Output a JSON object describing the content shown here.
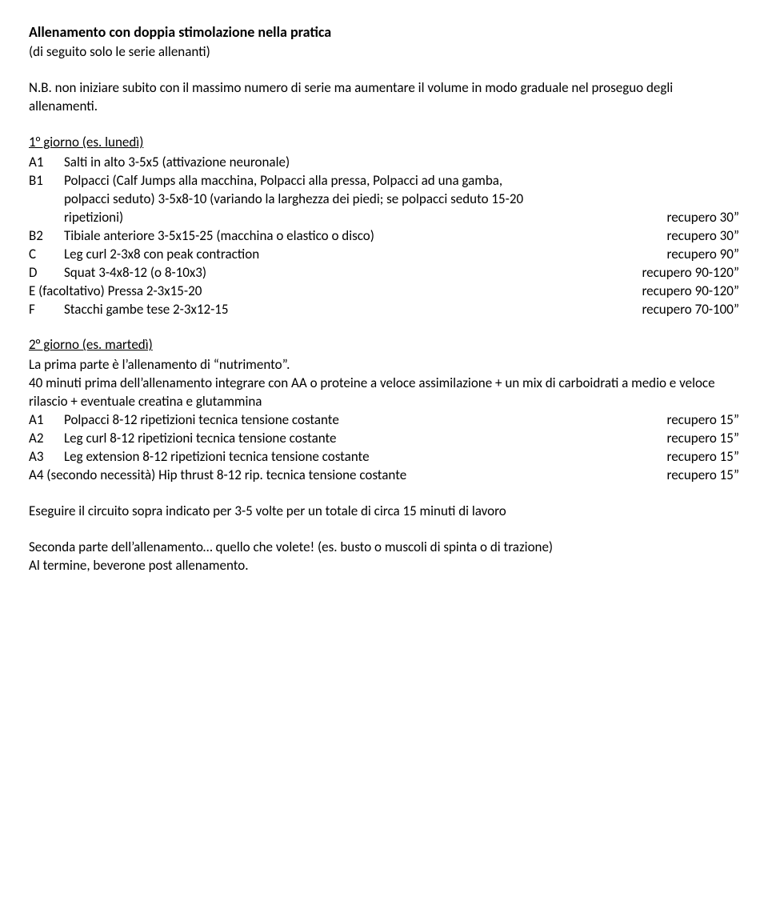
{
  "title": "Allenamento con doppia stimolazione nella pratica",
  "subtitle": "(di seguito solo le serie allenanti)",
  "nb": "N.B. non iniziare subito con il massimo numero di serie ma aumentare il volume in modo graduale nel proseguo degli allenamenti.",
  "day1": {
    "header": "1° giorno (es. lunedì)",
    "a1": {
      "code": "A1",
      "desc": "Salti in alto 3-5x5 (attivazione neuronale)"
    },
    "b1": {
      "code": "B1",
      "desc1": "Polpacci (Calf Jumps alla macchina, Polpacci alla pressa, Polpacci ad una gamba,",
      "desc2": "polpacci seduto) 3-5x8-10 (variando la larghezza dei piedi; se polpacci seduto 15-20",
      "desc3": "ripetizioni)",
      "rec": "recupero 30”"
    },
    "b2": {
      "code": "B2",
      "desc": "Tibiale anteriore 3-5x15-25 (macchina o elastico o disco)",
      "rec": "recupero 30”"
    },
    "c": {
      "code": "C",
      "desc": "Leg curl 2-3x8 con peak contraction",
      "rec": "recupero 90”"
    },
    "d": {
      "code": "D",
      "desc": "Squat 3-4x8-12 (o 8-10x3)",
      "rec": "recupero 90-120”"
    },
    "e": {
      "desc": "E (facoltativo) Pressa 2-3x15-20",
      "rec": "recupero 90-120”"
    },
    "f": {
      "code": "F",
      "desc": "Stacchi gambe tese 2-3x12-15",
      "rec": "recupero 70-100”"
    }
  },
  "day2": {
    "header": "2° giorno (es. martedì)",
    "p1": "La prima parte è l’allenamento di “nutrimento”.",
    "p2": "40 minuti prima dell’allenamento integrare con AA o proteine a veloce assimilazione + un mix di carboidrati a medio e veloce rilascio + eventuale creatina e glutammina",
    "a1": {
      "code": "A1",
      "desc": "Polpacci 8-12 ripetizioni tecnica tensione costante",
      "rec": "recupero 15”"
    },
    "a2": {
      "code": "A2",
      "desc": "Leg curl 8-12 ripetizioni tecnica tensione costante",
      "rec": "recupero 15”"
    },
    "a3": {
      "code": "A3",
      "desc": "Leg extension 8-12 ripetizioni tecnica tensione costante",
      "rec": "recupero 15”"
    },
    "a4": {
      "desc": "A4 (secondo necessità) Hip thrust 8-12 rip. tecnica tensione costante",
      "rec": "recupero 15”"
    }
  },
  "footer1": "Eseguire il circuito sopra indicato per 3-5 volte per un totale di circa 15 minuti di lavoro",
  "footer2": "Seconda parte dell’allenamento… quello che volete! (es. busto o muscoli di spinta o di trazione)",
  "footer3": "Al termine, beverone post allenamento."
}
